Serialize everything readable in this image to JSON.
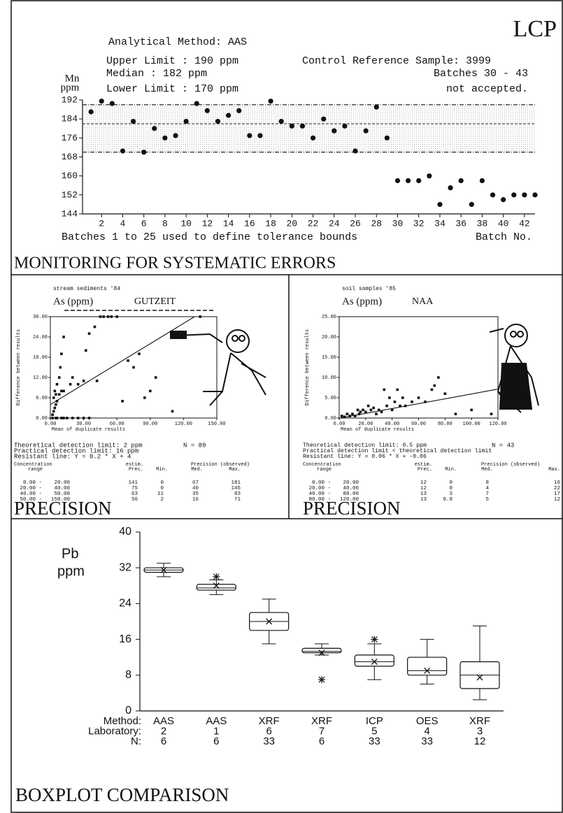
{
  "page_label": "LCP",
  "chart_data": [
    {
      "type": "control",
      "title": "MONITORING FOR SYSTEMATIC ERRORS",
      "annotations": [
        "Analytical Method: AAS",
        "Upper Limit : 190 ppm",
        "Median     : 182 ppm",
        "Lower Limit : 170 ppm",
        "Control Reference Sample: 3999",
        "Batches 30 - 43",
        "not accepted."
      ],
      "y_label": [
        "Mn",
        "ppm"
      ],
      "x_label": "Batches  1 to 25 used to define tolerance bounds",
      "x_label_right": "Batch No.",
      "x": [
        1,
        2,
        3,
        4,
        5,
        6,
        7,
        8,
        9,
        10,
        11,
        12,
        13,
        14,
        15,
        16,
        17,
        18,
        19,
        20,
        21,
        22,
        23,
        24,
        25,
        26,
        27,
        28,
        29,
        30,
        31,
        32,
        33,
        34,
        35,
        36,
        37,
        38,
        39,
        40,
        41,
        42,
        43
      ],
      "values": [
        187,
        191.5,
        190.5,
        170.5,
        183,
        170,
        180,
        176,
        177,
        183,
        190.5,
        187.5,
        183,
        185.5,
        187.5,
        177,
        177,
        191.5,
        183,
        181,
        181,
        176,
        184,
        179,
        181,
        170.5,
        179,
        189,
        176,
        158,
        158,
        158,
        160,
        148,
        155,
        158,
        148,
        158,
        152,
        150,
        152,
        152,
        152
      ],
      "color": "#111111",
      "limits": {
        "upper": 190,
        "median": 182,
        "lower": 170
      },
      "xlim": [
        0.2,
        43
      ],
      "ylim": [
        144,
        192
      ],
      "xticks": [
        2,
        4,
        6,
        8,
        10,
        12,
        14,
        16,
        18,
        20,
        22,
        24,
        26,
        28,
        30,
        32,
        34,
        36,
        38,
        40,
        42
      ],
      "yticks": [
        144,
        152,
        160,
        168,
        176,
        184,
        192
      ]
    },
    {
      "type": "scatter",
      "title": "PRECISION",
      "subtitle": "stream sediments '84",
      "element": "As (ppm)",
      "method": "GUTZEIT",
      "y_label": "Difference between results",
      "x_label": "Mean of duplicate results",
      "x": [
        2,
        3,
        4,
        5,
        6,
        3,
        5,
        4,
        8,
        10,
        12,
        6,
        8,
        9,
        10,
        12,
        18,
        20,
        25,
        30,
        32,
        35,
        40,
        42,
        45,
        48,
        52,
        55,
        60,
        65,
        70,
        75,
        80,
        85,
        90,
        95,
        110,
        135,
        2,
        6,
        10,
        15,
        20,
        25,
        30,
        35,
        5,
        12
      ],
      "values": [
        1,
        2,
        3,
        4,
        5,
        6,
        7,
        8,
        7,
        8,
        8,
        10,
        12,
        15,
        19,
        24,
        10,
        12,
        10,
        11,
        20,
        25,
        27,
        11,
        30,
        30,
        30,
        30,
        30,
        5,
        17,
        15,
        19,
        6,
        8,
        12,
        2,
        30,
        0,
        0,
        0,
        0,
        0,
        0,
        0,
        0,
        0,
        0
      ],
      "color": "#111111",
      "fit": {
        "x": [
          0,
          130
        ],
        "y": [
          4,
          30
        ]
      },
      "xlim": [
        0,
        150
      ],
      "ylim": [
        0,
        30
      ],
      "xticks": [
        {
          "value": 0,
          "label": "0.00"
        },
        {
          "value": 30,
          "label": "30.00"
        },
        {
          "value": 60,
          "label": "60.00"
        },
        {
          "value": 90,
          "label": "90.00"
        },
        {
          "value": 120,
          "label": "120.00"
        },
        {
          "value": 150,
          "label": "150.00"
        }
      ],
      "yticks": [
        {
          "value": 0,
          "label": "0.00"
        },
        {
          "value": 6,
          "label": "6.00"
        },
        {
          "value": 12,
          "label": "12.00"
        },
        {
          "value": 18,
          "label": "18.00"
        },
        {
          "value": 24,
          "label": "24.00"
        },
        {
          "value": 30,
          "label": "30.00"
        }
      ],
      "notes": [
        "Theoretical detection limit: 2 ppm",
        "Practical detection limit: 16 ppm",
        "Resistant line: Y = 0.2 * X + 4"
      ],
      "n_label": "N = 89",
      "table": {
        "header": [
          "Concentration",
          "range",
          "estim.",
          "Prec.",
          "Precision (observed)",
          "Min.",
          "Med.",
          "Max."
        ],
        "rows": [
          [
            "0.00 -",
            "20.00",
            141,
            0,
            67,
            181
          ],
          [
            "20.00 -",
            "40.00",
            75,
            0,
            40,
            145
          ],
          [
            "40.00 -",
            "50.00",
            63,
            11,
            35,
            83
          ],
          [
            "50.00 -",
            "150.00",
            56,
            2,
            16,
            71
          ]
        ]
      }
    },
    {
      "type": "scatter",
      "title": "PRECISION",
      "subtitle": "soil samples '85",
      "element": "As (ppm)",
      "method": "NAA",
      "y_label": "Difference between results",
      "x_label": "Mean of duplicate results",
      "x": [
        2,
        4,
        6,
        8,
        10,
        12,
        14,
        15,
        16,
        18,
        20,
        22,
        24,
        26,
        28,
        30,
        32,
        34,
        36,
        38,
        40,
        42,
        44,
        46,
        48,
        55,
        65,
        70,
        72,
        75,
        80,
        88,
        100,
        115,
        60,
        50
      ],
      "values": [
        0.5,
        0.3,
        1,
        0.5,
        1,
        0.5,
        2,
        1,
        1.5,
        2,
        1.5,
        3,
        2,
        2.5,
        1,
        2,
        1.5,
        7,
        3,
        5,
        2,
        4,
        7,
        3,
        5,
        4,
        4,
        7,
        8,
        10,
        6,
        1,
        2,
        1,
        5,
        3
      ],
      "color": "#111111",
      "fit": {
        "x": [
          0,
          120
        ],
        "y": [
          -0.06,
          7.14
        ]
      },
      "xlim": [
        0,
        120
      ],
      "ylim": [
        0,
        25
      ],
      "xticks": [
        {
          "value": 0,
          "label": "0.00"
        },
        {
          "value": 20,
          "label": "20.00"
        },
        {
          "value": 40,
          "label": "40.00"
        },
        {
          "value": 60,
          "label": "60.00"
        },
        {
          "value": 80,
          "label": "80.00"
        },
        {
          "value": 100,
          "label": "100.00"
        },
        {
          "value": 120,
          "label": "120.00"
        }
      ],
      "yticks": [
        {
          "value": 0,
          "label": "0.00"
        },
        {
          "value": 5,
          "label": "5.00"
        },
        {
          "value": 10,
          "label": "10.00"
        },
        {
          "value": 15,
          "label": "15.00"
        },
        {
          "value": 20,
          "label": "20.00"
        },
        {
          "value": 25,
          "label": "25.00"
        }
      ],
      "notes": [
        "Theoretical detection limit: 0.5 ppm",
        "Practical detection limit < theoretical detection limit",
        "Resistant line: Y = 0.06 * X + -0.06"
      ],
      "n_label": "N = 43",
      "table": {
        "header": [
          "Concentration",
          "range",
          "estim.",
          "Prec.",
          "Precision (observed)",
          "Min.",
          "Med.",
          "Max."
        ],
        "rows": [
          [
            "0.00 -",
            "20.00",
            12,
            0,
            8,
            16
          ],
          [
            "20.00 -",
            "40.00",
            12,
            0,
            4,
            22
          ],
          [
            "40.00 -",
            "80.00",
            13,
            3,
            7,
            17
          ],
          [
            "80.00 -",
            "120.00",
            13,
            0.8,
            5,
            12
          ]
        ]
      }
    },
    {
      "type": "box",
      "title": "BOXPLOT COMPARISON",
      "y_label": [
        "Pb",
        "ppm"
      ],
      "row_labels": [
        "Method:",
        "Laboratory:",
        "N:"
      ],
      "methods": [
        "AAS",
        "AAS",
        "XRF",
        "XRF",
        "ICP",
        "OES",
        "XRF"
      ],
      "laboratories": [
        2,
        1,
        6,
        7,
        5,
        4,
        3
      ],
      "n": [
        6,
        6,
        33,
        6,
        33,
        33,
        12
      ],
      "boxes": [
        {
          "min": 30,
          "q1": 31,
          "median": 31.5,
          "q3": 32,
          "max": 33,
          "mean": 31.5
        },
        {
          "min": 26,
          "q1": 27,
          "median": 27.5,
          "q3": 28.3,
          "max": 29.3,
          "mean": 28,
          "outliers": [
            30
          ]
        },
        {
          "min": 15,
          "q1": 18,
          "median": 20,
          "q3": 22,
          "max": 25,
          "mean": 20
        },
        {
          "min": 12.5,
          "q1": 13,
          "median": 13.3,
          "q3": 14,
          "max": 15,
          "mean": 13,
          "outliers": [
            7
          ]
        },
        {
          "min": 7,
          "q1": 10,
          "median": 11,
          "q3": 12.5,
          "max": 15,
          "mean": 11,
          "outliers": [
            16
          ]
        },
        {
          "min": 6,
          "q1": 8,
          "median": 9,
          "q3": 12,
          "max": 16,
          "mean": 9
        },
        {
          "min": 2.5,
          "q1": 5,
          "median": 8,
          "q3": 11,
          "max": 19,
          "mean": 7.5
        }
      ],
      "color": "#111111",
      "ylim": [
        0,
        40
      ],
      "yticks": [
        0,
        8,
        16,
        24,
        32,
        40
      ]
    }
  ]
}
